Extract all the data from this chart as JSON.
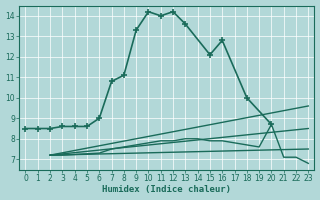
{
  "title": "",
  "xlabel": "Humidex (Indice chaleur)",
  "background_color": "#b2d8d8",
  "grid_color": "#ffffff",
  "line_color": "#1a6b5a",
  "xlim": [
    -0.5,
    23.5
  ],
  "ylim": [
    6.5,
    14.5
  ],
  "xticks": [
    0,
    1,
    2,
    3,
    4,
    5,
    6,
    7,
    8,
    9,
    10,
    11,
    12,
    13,
    14,
    15,
    16,
    17,
    18,
    19,
    20,
    21,
    22,
    23
  ],
  "yticks": [
    7,
    8,
    9,
    10,
    11,
    12,
    13,
    14
  ],
  "series": [
    {
      "x": [
        0,
        1,
        2,
        3,
        4,
        5,
        6,
        7,
        8,
        9,
        10,
        11,
        12,
        13,
        15,
        16,
        18,
        20
      ],
      "y": [
        8.5,
        8.5,
        8.5,
        8.6,
        8.6,
        8.6,
        9.0,
        10.8,
        11.1,
        13.3,
        14.2,
        14.0,
        14.2,
        13.6,
        12.1,
        12.8,
        10.0,
        8.7
      ],
      "marker": "+",
      "linestyle": "-",
      "linewidth": 1.2,
      "markersize": 4
    },
    {
      "x": [
        2,
        23
      ],
      "y": [
        7.2,
        9.6
      ],
      "marker": null,
      "linestyle": "-",
      "linewidth": 1.0,
      "markersize": 0
    },
    {
      "x": [
        2,
        23
      ],
      "y": [
        7.2,
        8.5
      ],
      "marker": null,
      "linestyle": "-",
      "linewidth": 1.0,
      "markersize": 0
    },
    {
      "x": [
        2,
        23
      ],
      "y": [
        7.2,
        7.5
      ],
      "marker": null,
      "linestyle": "-",
      "linewidth": 1.0,
      "markersize": 0
    },
    {
      "x": [
        2,
        3,
        6,
        7,
        8,
        9,
        10,
        11,
        12,
        13,
        14,
        15,
        16,
        17,
        18,
        19,
        20,
        21,
        22,
        23
      ],
      "y": [
        7.2,
        7.2,
        7.3,
        7.5,
        7.6,
        7.7,
        7.8,
        7.9,
        7.9,
        8.0,
        8.0,
        7.9,
        7.9,
        7.8,
        7.7,
        7.6,
        8.7,
        7.1,
        7.1,
        6.8
      ],
      "marker": null,
      "linestyle": "-",
      "linewidth": 1.0,
      "markersize": 0
    }
  ]
}
